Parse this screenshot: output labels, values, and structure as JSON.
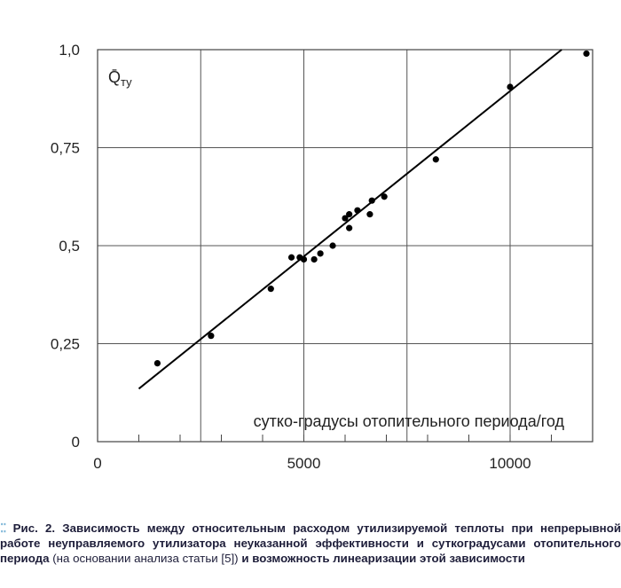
{
  "chart_data": {
    "type": "scatter",
    "ylabel": "Q̄ту",
    "xlabel": "сутко-градусы отопительного периода/год",
    "xlim": [
      0,
      12000
    ],
    "ylim": [
      0,
      1.0
    ],
    "x_ticks": [
      {
        "value": 0,
        "label": "0"
      },
      {
        "value": 5000,
        "label": "5000"
      },
      {
        "value": 10000,
        "label": "10000"
      }
    ],
    "y_ticks": [
      {
        "value": 0,
        "label": "0"
      },
      {
        "value": 0.25,
        "label": "0,25"
      },
      {
        "value": 0.5,
        "label": "0,5"
      },
      {
        "value": 0.75,
        "label": "0,75"
      },
      {
        "value": 1.0,
        "label": "1,0"
      }
    ],
    "x_gridlines": [
      2500,
      5000,
      7500,
      10000
    ],
    "y_gridlines": [
      0.25,
      0.5,
      0.75,
      1.0
    ],
    "points": [
      {
        "x": 1450,
        "y": 0.2
      },
      {
        "x": 2750,
        "y": 0.27
      },
      {
        "x": 4200,
        "y": 0.39
      },
      {
        "x": 4700,
        "y": 0.47
      },
      {
        "x": 4900,
        "y": 0.47
      },
      {
        "x": 5000,
        "y": 0.465
      },
      {
        "x": 5250,
        "y": 0.465
      },
      {
        "x": 5400,
        "y": 0.48
      },
      {
        "x": 5700,
        "y": 0.5
      },
      {
        "x": 6000,
        "y": 0.57
      },
      {
        "x": 6100,
        "y": 0.545
      },
      {
        "x": 6100,
        "y": 0.58
      },
      {
        "x": 6300,
        "y": 0.59
      },
      {
        "x": 6600,
        "y": 0.58
      },
      {
        "x": 6650,
        "y": 0.615
      },
      {
        "x": 6950,
        "y": 0.625
      },
      {
        "x": 8200,
        "y": 0.72
      },
      {
        "x": 10000,
        "y": 0.905
      },
      {
        "x": 11850,
        "y": 0.99
      }
    ],
    "trend_line": [
      {
        "x": 1000,
        "y": 0.135
      },
      {
        "x": 11250,
        "y": 1.0
      }
    ]
  },
  "caption": {
    "figure_label": "Рис. 2.",
    "title_bold": "Зависимость между относительным расходом утилизируемой теплоты при непрерывной работе неуправляемого утилизатора неуказанной эффективности и суткоградусами отопительного периода",
    "note": "(на основании анализа статьи [5])",
    "title_end": "и возможность линеаризации этой зависимости"
  }
}
